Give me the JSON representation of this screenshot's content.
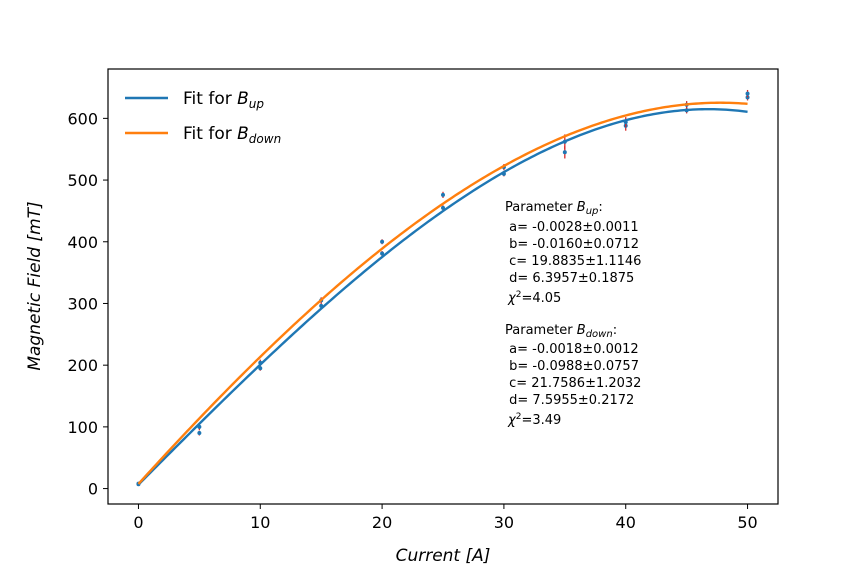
{
  "chart_data": {
    "type": "scatter",
    "xlabel_main": "Current",
    "xlabel_unit": " [A]",
    "ylabel_main": "Magnetic Field",
    "ylabel_unit": " [mT]",
    "xlim": [
      -2.5,
      52.5
    ],
    "ylim": [
      -25,
      680
    ],
    "xticks": [
      0,
      10,
      20,
      30,
      40,
      50
    ],
    "yticks": [
      0,
      100,
      200,
      300,
      400,
      500,
      600
    ],
    "grid": false,
    "legend_position": "top-left",
    "legend": [
      {
        "prefix": "Fit for ",
        "base": "B",
        "sub": "up",
        "color": "#1f77b4"
      },
      {
        "prefix": "Fit for ",
        "base": "B",
        "sub": "down",
        "color": "#ff7f0e"
      }
    ],
    "error_color": "#d62728",
    "marker_color": "#1f77b4",
    "series": [
      {
        "name": "B_up",
        "color": "#1f77b4",
        "fit": {
          "a": -0.0028,
          "b": -0.016,
          "c": 19.8835,
          "d": 6.3957
        },
        "points": [
          {
            "x": 0,
            "y": 7,
            "err": 2
          },
          {
            "x": 5,
            "y": 90,
            "err": 4
          },
          {
            "x": 10,
            "y": 195,
            "err": 4
          },
          {
            "x": 15,
            "y": 296,
            "err": 4
          },
          {
            "x": 20,
            "y": 381,
            "err": 4
          },
          {
            "x": 25,
            "y": 455,
            "err": 4
          },
          {
            "x": 30,
            "y": 510,
            "err": 4
          },
          {
            "x": 35,
            "y": 545,
            "err": 10
          },
          {
            "x": 40,
            "y": 588,
            "err": 8
          },
          {
            "x": 45,
            "y": 613,
            "err": 5
          },
          {
            "x": 50,
            "y": 634,
            "err": 5
          }
        ]
      },
      {
        "name": "B_down",
        "color": "#ff7f0e",
        "fit": {
          "a": -0.0018,
          "b": -0.0988,
          "c": 21.7586,
          "d": 7.5955
        },
        "points": [
          {
            "x": 0,
            "y": 8,
            "err": 2
          },
          {
            "x": 5,
            "y": 100,
            "err": 5
          },
          {
            "x": 10,
            "y": 204,
            "err": 5
          },
          {
            "x": 15,
            "y": 305,
            "err": 5
          },
          {
            "x": 20,
            "y": 400,
            "err": 4
          },
          {
            "x": 25,
            "y": 476,
            "err": 5
          },
          {
            "x": 30,
            "y": 521,
            "err": 5
          },
          {
            "x": 35,
            "y": 562,
            "err": 12
          },
          {
            "x": 40,
            "y": 594,
            "err": 8
          },
          {
            "x": 45,
            "y": 622,
            "err": 6
          },
          {
            "x": 50,
            "y": 640,
            "err": 6
          }
        ]
      }
    ],
    "annotations": [
      {
        "header_prefix": "Parameter ",
        "header_base": "B",
        "header_sub": "up",
        "header_suffix": ":",
        "lines": [
          " a= -0.0028±0.0011",
          " b= -0.0160±0.0712",
          " c= 19.8835±1.1146",
          " d= 6.3957±0.1875"
        ],
        "chi_value": "=4.05"
      },
      {
        "header_prefix": "Parameter ",
        "header_base": "B",
        "header_sub": "down",
        "header_suffix": ":",
        "lines": [
          " a= -0.0018±0.0012",
          " b= -0.0988±0.0757",
          " c= 21.7586±1.2032",
          " d= 7.5955±0.2172"
        ],
        "chi_value": "=3.49"
      }
    ]
  }
}
